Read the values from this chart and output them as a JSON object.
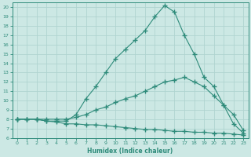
{
  "xlabel": "Humidex (Indice chaleur)",
  "xlim": [
    -0.5,
    23.5
  ],
  "ylim": [
    6,
    20.5
  ],
  "xticks": [
    0,
    1,
    2,
    3,
    4,
    5,
    6,
    7,
    8,
    9,
    10,
    11,
    12,
    13,
    14,
    15,
    16,
    17,
    18,
    19,
    20,
    21,
    22,
    23
  ],
  "yticks": [
    6,
    7,
    8,
    9,
    10,
    11,
    12,
    13,
    14,
    15,
    16,
    17,
    18,
    19,
    20
  ],
  "line_color": "#2e8b7a",
  "bg_color": "#cce8e4",
  "grid_color": "#b0d4d0",
  "curve1_x": [
    0,
    1,
    2,
    3,
    4,
    5,
    6,
    7,
    8,
    9,
    10,
    11,
    12,
    13,
    14,
    15,
    16,
    17,
    18,
    19,
    20,
    21,
    22,
    23
  ],
  "curve1_y": [
    8.0,
    8.0,
    8.0,
    7.8,
    7.8,
    7.8,
    8.5,
    10.2,
    11.5,
    13.0,
    14.5,
    15.5,
    16.5,
    17.5,
    19.0,
    20.2,
    19.5,
    17.0,
    15.0,
    12.5,
    11.5,
    9.5,
    7.5,
    6.5
  ],
  "curve2_x": [
    0,
    1,
    2,
    3,
    4,
    5,
    6,
    7,
    8,
    9,
    10,
    11,
    12,
    13,
    14,
    15,
    16,
    17,
    18,
    19,
    20,
    21,
    22,
    23
  ],
  "curve2_y": [
    8.0,
    8.0,
    8.0,
    8.0,
    8.0,
    8.0,
    8.2,
    8.5,
    9.0,
    9.3,
    9.8,
    10.2,
    10.5,
    11.0,
    11.5,
    12.0,
    12.2,
    12.5,
    12.0,
    11.5,
    10.5,
    9.5,
    8.5,
    6.8
  ],
  "curve3_x": [
    0,
    1,
    2,
    3,
    4,
    5,
    6,
    7,
    8,
    9,
    10,
    11,
    12,
    13,
    14,
    15,
    16,
    17,
    18,
    19,
    20,
    21,
    22,
    23
  ],
  "curve3_y": [
    8.0,
    8.0,
    8.0,
    7.8,
    7.7,
    7.5,
    7.5,
    7.4,
    7.4,
    7.3,
    7.2,
    7.1,
    7.0,
    6.9,
    6.9,
    6.8,
    6.7,
    6.7,
    6.6,
    6.6,
    6.5,
    6.5,
    6.4,
    6.3
  ]
}
